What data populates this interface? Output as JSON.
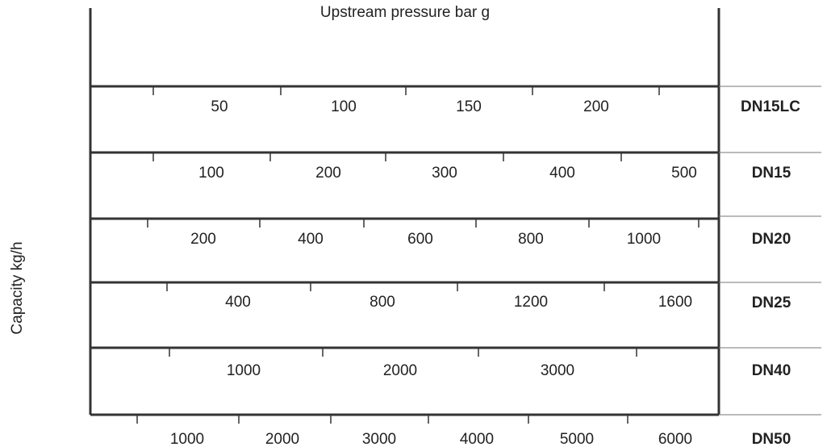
{
  "chart_data": {
    "type": "table",
    "title": "Upstream pressure bar g",
    "ylabel": "Capacity kg/h",
    "rows": [
      {
        "name": "DN15LC",
        "tick_labels": [
          "50",
          "100",
          "150",
          "200"
        ]
      },
      {
        "name": "DN15",
        "tick_labels": [
          "100",
          "200",
          "300",
          "400",
          "500"
        ]
      },
      {
        "name": "DN20",
        "tick_labels": [
          "200",
          "400",
          "600",
          "800",
          "1000"
        ]
      },
      {
        "name": "DN25",
        "tick_labels": [
          "400",
          "800",
          "1200",
          "1600"
        ]
      },
      {
        "name": "DN40",
        "tick_labels": [
          "1000",
          "2000",
          "3000"
        ]
      },
      {
        "name": "DN50",
        "tick_labels": [
          "1000",
          "2000",
          "3000",
          "4000",
          "5000",
          "6000"
        ]
      }
    ]
  }
}
